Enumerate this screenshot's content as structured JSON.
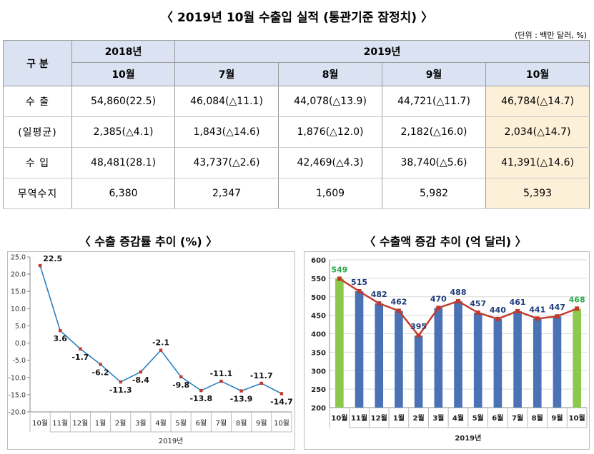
{
  "page": {
    "title": "〈 2019년 10월 수출입 실적 (통관기준 잠정치) 〉",
    "unit": "(단위 : 백만 달러, %)"
  },
  "table": {
    "header_label": "구 분",
    "year_2018": "2018년",
    "year_2019": "2019년",
    "months": [
      "10월",
      "7월",
      "8월",
      "9월",
      "10월"
    ],
    "rows": [
      {
        "label": "수 출",
        "cells": [
          "54,860(22.5)",
          "46,084(△11.1)",
          "44,078(△13.9)",
          "44,721(△11.7)",
          "46,784(△14.7)"
        ]
      },
      {
        "label": "(일평균)",
        "cells": [
          "2,385(△4.1)",
          "1,843(△14.6)",
          "1,876(△12.0)",
          "2,182(△16.0)",
          "2,034(△14.7)"
        ]
      },
      {
        "label": "수 입",
        "cells": [
          "48,481(28.1)",
          "43,737(△2.6)",
          "42,469(△4.3)",
          "38,740(△5.6)",
          "41,391(△14.6)"
        ]
      },
      {
        "label": "무역수지",
        "cells": [
          "6,380",
          "2,347",
          "1,609",
          "5,982",
          "5,393"
        ]
      }
    ]
  },
  "chart_data": [
    {
      "type": "line",
      "title": "〈 수출 증감률 추이 (%) 〉",
      "categories": [
        "10월",
        "11월",
        "12월",
        "1월",
        "2월",
        "3월",
        "4월",
        "5월",
        "6월",
        "7월",
        "8월",
        "9월",
        "10월"
      ],
      "group_label": "2019년",
      "values": [
        22.5,
        3.6,
        -1.7,
        -6.2,
        -11.3,
        -8.4,
        -2.1,
        -9.8,
        -13.8,
        -11.1,
        -13.9,
        -11.7,
        -14.7
      ],
      "ylim": [
        -20,
        25
      ],
      "yticks": [
        "25.0",
        "20.0",
        "15.0",
        "10.0",
        "5.0",
        "0.0",
        "-5.0",
        "-10.0",
        "-15.0",
        "-20.0"
      ],
      "grid": false,
      "colors": {
        "line": "#2a7fc1",
        "marker": "#c0392b"
      }
    },
    {
      "type": "bar",
      "title": "〈 수출액 증감 추이 (억 달러) 〉",
      "categories": [
        "10월",
        "11월",
        "12월",
        "1월",
        "2월",
        "3월",
        "4월",
        "5월",
        "6월",
        "7월",
        "8월",
        "9월",
        "10월"
      ],
      "group_label": "2019년",
      "values": [
        549,
        515,
        482,
        462,
        395,
        470,
        488,
        457,
        440,
        461,
        441,
        447,
        468
      ],
      "ylim": [
        200,
        600
      ],
      "yticks": [
        "600",
        "550",
        "500",
        "450",
        "400",
        "350",
        "300",
        "250",
        "200"
      ],
      "grid": true,
      "overlay_line": true,
      "colors": {
        "bar": "#4a72b5",
        "bar_highlight": "#8cc84b",
        "line": "#c0392b",
        "label": "#1f3d7a",
        "label_highlight": "#2aa84a"
      }
    }
  ]
}
